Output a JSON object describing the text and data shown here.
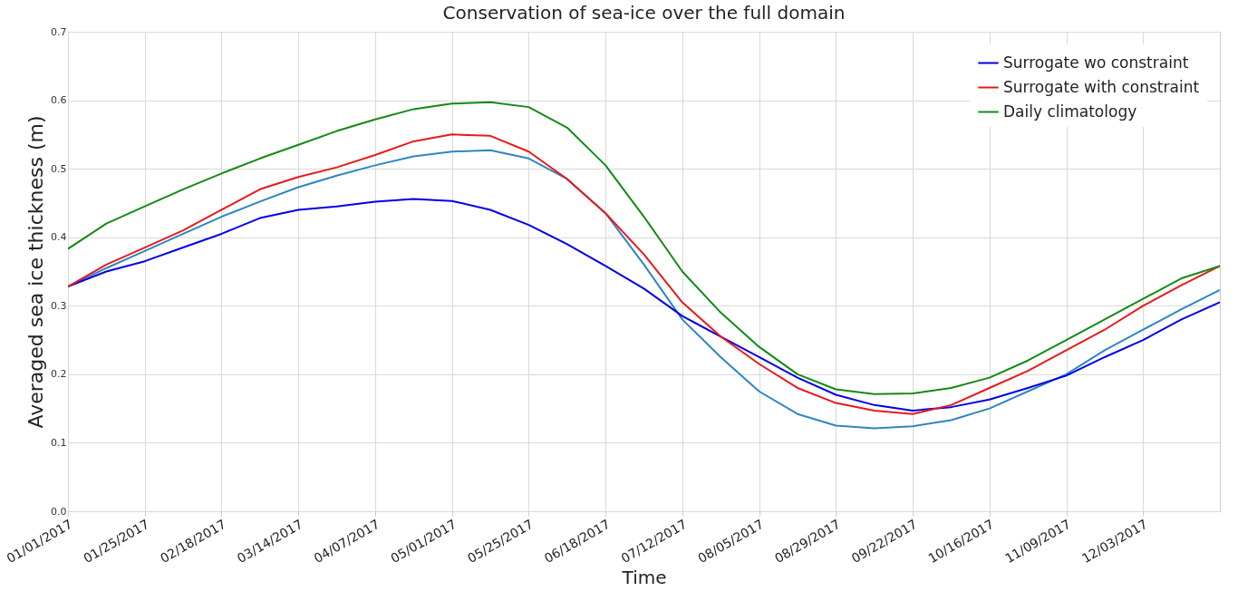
{
  "chart_data": {
    "type": "line",
    "title": "Conservation of sea-ice over the full domain",
    "xlabel": "Time",
    "ylabel": "Averaged sea ice thickness (m)",
    "x": [
      "2017-01-01",
      "2017-01-13",
      "2017-01-25",
      "2017-02-06",
      "2017-02-18",
      "2017-03-02",
      "2017-03-14",
      "2017-03-26",
      "2017-04-07",
      "2017-04-19",
      "2017-05-01",
      "2017-05-13",
      "2017-05-25",
      "2017-06-06",
      "2017-06-18",
      "2017-06-30",
      "2017-07-12",
      "2017-07-24",
      "2017-08-05",
      "2017-08-17",
      "2017-08-29",
      "2017-09-10",
      "2017-09-22",
      "2017-10-04",
      "2017-10-16",
      "2017-10-28",
      "2017-11-09",
      "2017-11-21",
      "2017-12-03",
      "2017-12-15",
      "2017-12-27"
    ],
    "series": [
      {
        "color": "#2e86c1",
        "values": [
          0.328,
          0.355,
          0.38,
          0.405,
          0.43,
          0.452,
          0.473,
          0.49,
          0.505,
          0.518,
          0.525,
          0.527,
          0.515,
          0.485,
          0.435,
          0.36,
          0.28,
          0.225,
          0.175,
          0.142,
          0.125,
          0.121,
          0.124,
          0.133,
          0.15,
          0.175,
          0.2,
          0.235,
          0.265,
          0.295,
          0.323
        ]
      },
      {
        "name": "Surrogate wo constraint",
        "color": "#0000e6",
        "values": [
          0.328,
          0.35,
          0.365,
          0.385,
          0.405,
          0.428,
          0.44,
          0.445,
          0.452,
          0.456,
          0.453,
          0.44,
          0.418,
          0.39,
          0.358,
          0.325,
          0.285,
          0.255,
          0.225,
          0.195,
          0.17,
          0.155,
          0.147,
          0.152,
          0.163,
          0.18,
          0.198,
          0.225,
          0.25,
          0.28,
          0.305
        ]
      },
      {
        "name": "Surrogate with constraint",
        "color": "#e61a1a",
        "values": [
          0.328,
          0.36,
          0.385,
          0.41,
          0.44,
          0.47,
          0.488,
          0.502,
          0.52,
          0.54,
          0.55,
          0.548,
          0.525,
          0.485,
          0.435,
          0.375,
          0.305,
          0.255,
          0.215,
          0.18,
          0.158,
          0.147,
          0.142,
          0.155,
          0.18,
          0.205,
          0.235,
          0.265,
          0.3,
          0.33,
          0.358
        ]
      },
      {
        "name": "Daily climatology",
        "color": "#138a13",
        "values": [
          0.383,
          0.42,
          0.445,
          0.47,
          0.493,
          0.515,
          0.535,
          0.555,
          0.572,
          0.587,
          0.595,
          0.597,
          0.59,
          0.56,
          0.505,
          0.43,
          0.35,
          0.29,
          0.24,
          0.2,
          0.178,
          0.171,
          0.172,
          0.18,
          0.195,
          0.22,
          0.25,
          0.28,
          0.31,
          0.34,
          0.358
        ]
      }
    ],
    "xlim": [
      "2017-01-01",
      "2017-12-27"
    ],
    "xticks": [
      {
        "value": "2017-01-01",
        "label": "01/01/2017"
      },
      {
        "value": "2017-01-25",
        "label": "01/25/2017"
      },
      {
        "value": "2017-02-18",
        "label": "02/18/2017"
      },
      {
        "value": "2017-03-14",
        "label": "03/14/2017"
      },
      {
        "value": "2017-04-07",
        "label": "04/07/2017"
      },
      {
        "value": "2017-05-01",
        "label": "05/01/2017"
      },
      {
        "value": "2017-05-25",
        "label": "05/25/2017"
      },
      {
        "value": "2017-06-18",
        "label": "06/18/2017"
      },
      {
        "value": "2017-07-12",
        "label": "07/12/2017"
      },
      {
        "value": "2017-08-05",
        "label": "08/05/2017"
      },
      {
        "value": "2017-08-29",
        "label": "08/29/2017"
      },
      {
        "value": "2017-09-22",
        "label": "09/22/2017"
      },
      {
        "value": "2017-10-16",
        "label": "10/16/2017"
      },
      {
        "value": "2017-11-09",
        "label": "11/09/2017"
      },
      {
        "value": "2017-12-03",
        "label": "12/03/2017"
      }
    ],
    "ylim": [
      0,
      0.7
    ],
    "yticks": [
      {
        "value": 0,
        "label": "0.0"
      },
      {
        "value": 0.1,
        "label": "0.1"
      },
      {
        "value": 0.2,
        "label": "0.2"
      },
      {
        "value": 0.3,
        "label": "0.3"
      },
      {
        "value": 0.4,
        "label": "0.4"
      },
      {
        "value": 0.5,
        "label": "0.5"
      },
      {
        "value": 0.6,
        "label": "0.6"
      },
      {
        "value": 0.7,
        "label": "0.7"
      }
    ],
    "grid": true,
    "legend": "top right",
    "line_style": "solid",
    "marker": "none"
  }
}
